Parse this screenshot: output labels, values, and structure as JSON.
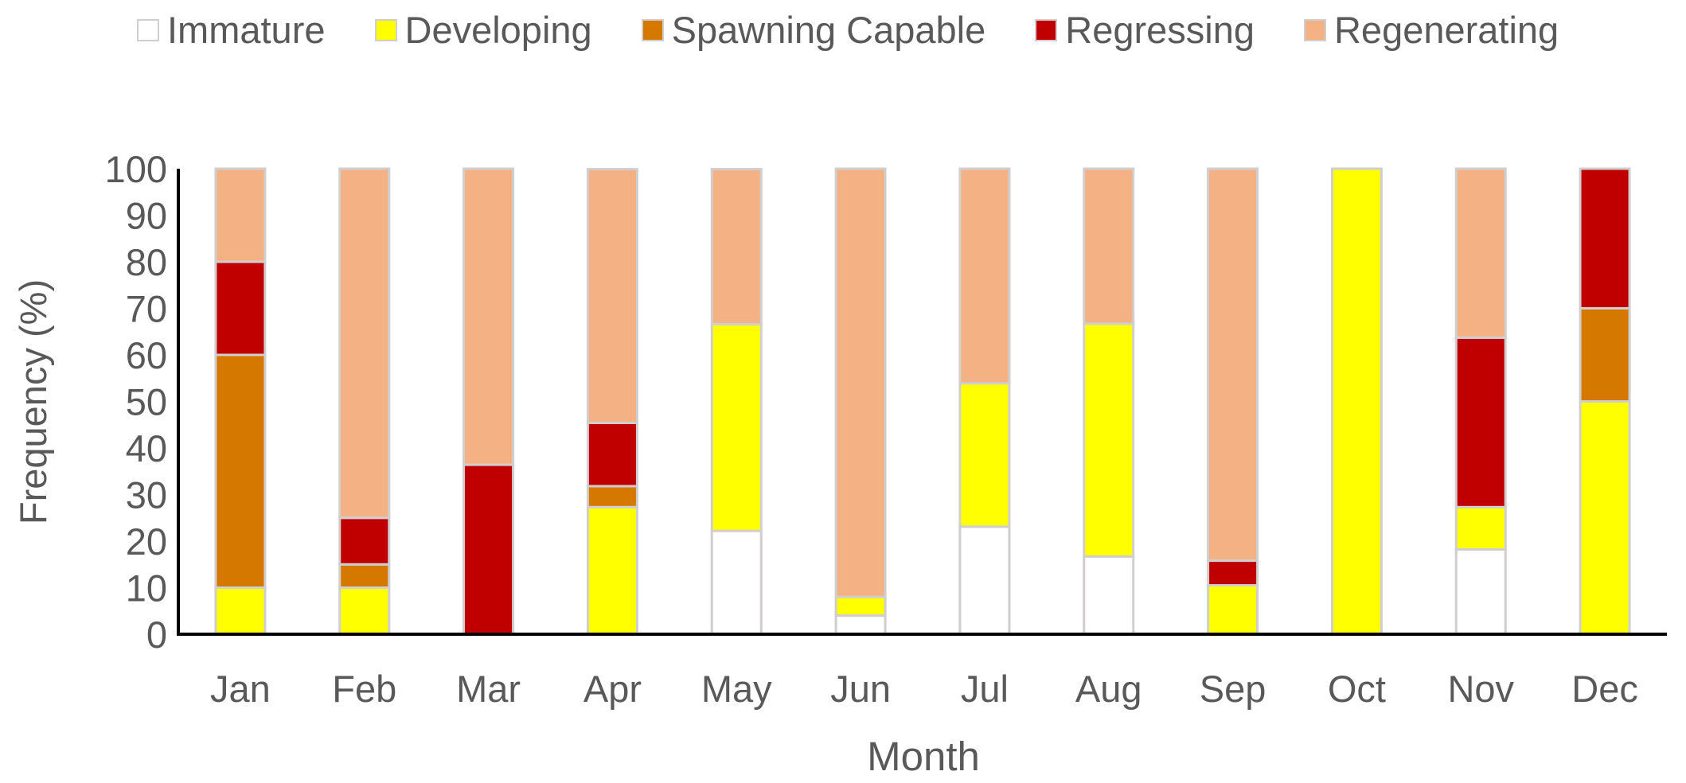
{
  "chart_data": {
    "type": "bar",
    "stacked": true,
    "title": "",
    "xlabel": "Month",
    "ylabel": "Frequency (%)",
    "ylim": [
      0,
      100
    ],
    "yticks": [
      0,
      10,
      20,
      30,
      40,
      50,
      60,
      70,
      80,
      90,
      100
    ],
    "grid": false,
    "legend_position": "top",
    "categories": [
      "Jan",
      "Feb",
      "Mar",
      "Apr",
      "May",
      "Jun",
      "Jul",
      "Aug",
      "Sep",
      "Oct",
      "Nov",
      "Dec"
    ],
    "series": [
      {
        "name": "Immature",
        "color": "#ffffff",
        "values": [
          0,
          0,
          0,
          0,
          22.2,
          4,
          23.1,
          16.7,
          0,
          0,
          18.2,
          0
        ]
      },
      {
        "name": "Developing",
        "color": "#ffff00",
        "values": [
          10,
          10,
          0,
          27.3,
          44.4,
          4,
          30.8,
          50,
          10.5,
          100,
          9.1,
          50
        ]
      },
      {
        "name": "Spawning Capable",
        "color": "#d47800",
        "values": [
          50,
          5,
          0,
          4.5,
          0,
          0,
          0,
          0,
          0,
          0,
          0,
          20
        ]
      },
      {
        "name": "Regressing",
        "color": "#c00000",
        "values": [
          20,
          10,
          36.4,
          13.6,
          0,
          0,
          0,
          0,
          5.3,
          0,
          36.4,
          30
        ]
      },
      {
        "name": "Regenerating",
        "color": "#f4b183",
        "values": [
          20,
          75,
          63.6,
          54.5,
          33.3,
          92,
          46.1,
          33.3,
          84.2,
          0,
          36.3,
          0
        ]
      }
    ],
    "bar_border_color": "#d0cece",
    "axis_color": "#000000",
    "text_color": "#595959"
  }
}
